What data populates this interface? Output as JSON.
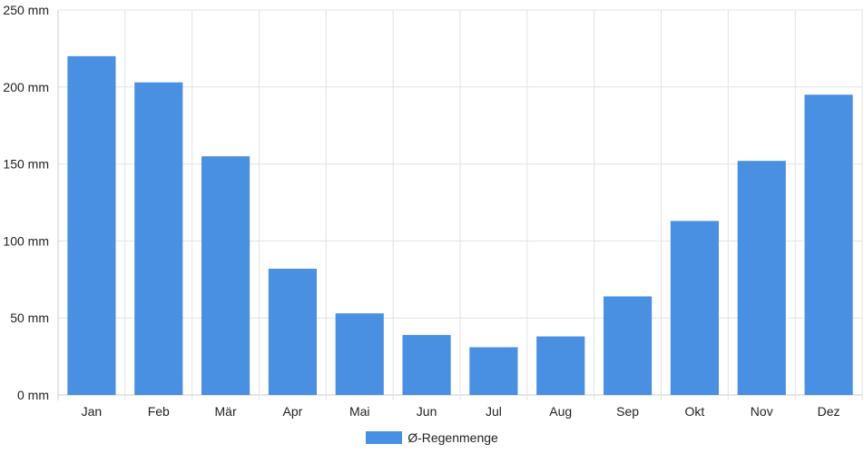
{
  "chart_data": {
    "type": "bar",
    "categories": [
      "Jan",
      "Feb",
      "Mär",
      "Apr",
      "Mai",
      "Jun",
      "Jul",
      "Aug",
      "Sep",
      "Okt",
      "Nov",
      "Dez"
    ],
    "series": [
      {
        "name": "Ø-Regenmenge",
        "values": [
          220,
          203,
          155,
          82,
          53,
          39,
          31,
          38,
          64,
          113,
          152,
          195
        ]
      }
    ],
    "y_ticks": [
      "0 mm",
      "50 mm",
      "100 mm",
      "150 mm",
      "200 mm",
      "250 mm"
    ],
    "ylim": [
      0,
      250
    ],
    "grid": true,
    "legend_position": "bottom-center",
    "colors": {
      "bar": "#4a90e2",
      "grid": "#e3e3e3",
      "axis": "#cccccc"
    }
  }
}
